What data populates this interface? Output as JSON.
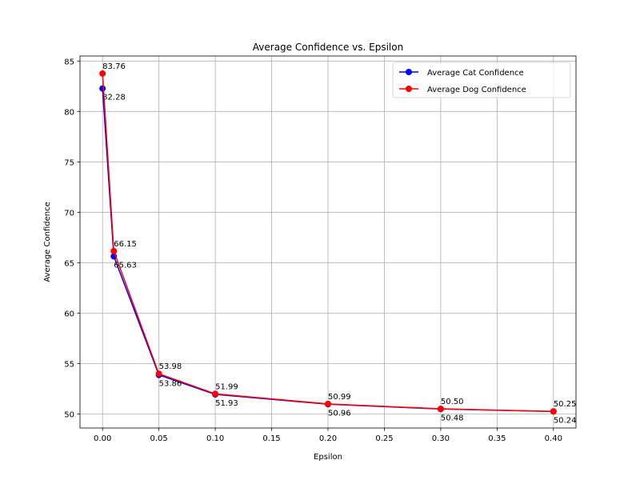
{
  "chart_data": {
    "type": "line",
    "title": "Average Confidence vs. Epsilon",
    "xlabel": "Epsilon",
    "ylabel": "Average Confidence",
    "xlim": [
      -0.02,
      0.42
    ],
    "ylim": [
      48.6,
      85.5
    ],
    "xticks": [
      0.0,
      0.05,
      0.1,
      0.15,
      0.2,
      0.25,
      0.3,
      0.35,
      0.4
    ],
    "xtick_labels": [
      "0.00",
      "0.05",
      "0.10",
      "0.15",
      "0.20",
      "0.25",
      "0.30",
      "0.35",
      "0.40"
    ],
    "yticks": [
      50,
      55,
      60,
      65,
      70,
      75,
      80,
      85
    ],
    "ytick_labels": [
      "50",
      "55",
      "60",
      "65",
      "70",
      "75",
      "80",
      "85"
    ],
    "grid": true,
    "legend_position": "top-right",
    "x": [
      0.0,
      0.01,
      0.05,
      0.1,
      0.2,
      0.3,
      0.4
    ],
    "series": [
      {
        "name": "Average Cat Confidence",
        "color": "#0000ff",
        "values": [
          82.28,
          65.63,
          53.86,
          51.93,
          50.96,
          50.48,
          50.24
        ],
        "labels": [
          "82.28",
          "65.63",
          "53.86",
          "51.93",
          "50.96",
          "50.48",
          "50.24"
        ],
        "label_side": "below"
      },
      {
        "name": "Average Dog Confidence",
        "color": "#ff0000",
        "values": [
          83.76,
          66.15,
          53.98,
          51.99,
          50.99,
          50.5,
          50.25
        ],
        "labels": [
          "83.76",
          "66.15",
          "53.98",
          "51.99",
          "50.99",
          "50.50",
          "50.25"
        ],
        "label_side": "above"
      }
    ]
  }
}
